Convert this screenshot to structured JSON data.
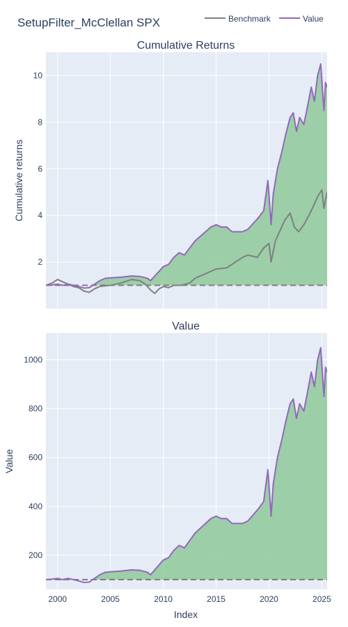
{
  "title": "SetupFilter_McClellan SPX",
  "legend": [
    {
      "name": "Benchmark",
      "color": "#7f7f7f"
    },
    {
      "name": "Value",
      "color": "#9467bd"
    }
  ],
  "colors": {
    "plot_bg": "#e5ecf6",
    "grid": "#ffffff",
    "fill_positive": "#8fc99a",
    "value_line": "#9467bd",
    "benchmark_line": "#7f7f7f",
    "benchmark_line_over": "#5e7f5e",
    "baseline": "#7f7f7f"
  },
  "chart_data": [
    {
      "type": "line",
      "title": "Cumulative Returns",
      "xlabel": "",
      "ylabel": "Cumulative returns",
      "xlim": [
        1998.9,
        2025.5
      ],
      "ylim": [
        0,
        11
      ],
      "yticks": [
        2,
        4,
        6,
        8,
        10
      ],
      "xticks": [
        2000,
        2005,
        2010,
        2015,
        2020,
        2025
      ],
      "grid": true,
      "baseline": 1,
      "series": [
        {
          "name": "Benchmark",
          "x": [
            1998.9,
            1999.5,
            2000.0,
            2000.5,
            2001.0,
            2001.5,
            2002.0,
            2002.5,
            2003.0,
            2003.5,
            2004.0,
            2005.0,
            2006.0,
            2007.0,
            2007.8,
            2008.3,
            2008.8,
            2009.2,
            2009.6,
            2010.0,
            2010.5,
            2011.0,
            2011.7,
            2012.5,
            2013.0,
            2014.0,
            2015.0,
            2016.0,
            2016.5,
            2017.5,
            2018.0,
            2018.9,
            2019.5,
            2020.0,
            2020.2,
            2020.6,
            2021.0,
            2021.5,
            2022.0,
            2022.4,
            2022.8,
            2023.3,
            2024.0,
            2024.6,
            2025.0,
            2025.2,
            2025.5
          ],
          "values": [
            1.0,
            1.1,
            1.25,
            1.15,
            1.05,
            0.95,
            0.9,
            0.75,
            0.7,
            0.85,
            0.95,
            1.0,
            1.1,
            1.25,
            1.2,
            1.05,
            0.8,
            0.65,
            0.85,
            0.95,
            0.9,
            1.0,
            1.0,
            1.1,
            1.3,
            1.5,
            1.7,
            1.75,
            1.9,
            2.2,
            2.3,
            2.2,
            2.6,
            2.8,
            2.0,
            2.9,
            3.3,
            3.8,
            4.1,
            3.5,
            3.3,
            3.6,
            4.2,
            4.8,
            5.1,
            4.3,
            5.0
          ]
        },
        {
          "name": "Value",
          "x": [
            1998.9,
            1999.5,
            2000.0,
            2000.5,
            2001.0,
            2001.5,
            2002.0,
            2002.5,
            2003.0,
            2003.5,
            2004.0,
            2004.5,
            2005.0,
            2006.0,
            2007.0,
            2007.8,
            2008.5,
            2008.8,
            2009.2,
            2009.6,
            2010.0,
            2010.5,
            2011.0,
            2011.5,
            2012.0,
            2012.5,
            2013.0,
            2013.5,
            2014.0,
            2014.5,
            2015.0,
            2015.5,
            2016.0,
            2016.5,
            2017.0,
            2017.5,
            2018.0,
            2018.6,
            2019.0,
            2019.5,
            2019.9,
            2020.2,
            2020.4,
            2020.8,
            2021.2,
            2021.6,
            2022.0,
            2022.3,
            2022.6,
            2022.9,
            2023.3,
            2023.7,
            2024.0,
            2024.3,
            2024.6,
            2024.9,
            2025.0,
            2025.2,
            2025.35,
            2025.5
          ],
          "values": [
            1.0,
            1.02,
            1.05,
            1.0,
            1.05,
            1.0,
            0.95,
            0.88,
            0.9,
            1.05,
            1.2,
            1.3,
            1.32,
            1.35,
            1.4,
            1.38,
            1.3,
            1.2,
            1.4,
            1.6,
            1.8,
            1.9,
            2.2,
            2.4,
            2.3,
            2.6,
            2.9,
            3.1,
            3.3,
            3.5,
            3.6,
            3.5,
            3.5,
            3.3,
            3.3,
            3.3,
            3.4,
            3.7,
            3.9,
            4.2,
            5.5,
            3.6,
            4.9,
            6.0,
            6.7,
            7.5,
            8.2,
            8.4,
            7.6,
            8.2,
            7.9,
            8.8,
            9.5,
            8.9,
            10.0,
            10.5,
            9.8,
            8.5,
            9.7,
            9.5
          ]
        }
      ]
    },
    {
      "type": "line",
      "title": "Value",
      "xlabel": "Index",
      "ylabel": "Value",
      "xlim": [
        1998.9,
        2025.5
      ],
      "ylim": [
        60,
        1110
      ],
      "yticks": [
        200,
        400,
        600,
        800,
        1000
      ],
      "xticks": [
        2000,
        2005,
        2010,
        2015,
        2020,
        2025
      ],
      "grid": true,
      "baseline": 100,
      "series": [
        {
          "name": "Value",
          "x": [
            1998.9,
            1999.5,
            2000.0,
            2000.5,
            2001.0,
            2001.5,
            2002.0,
            2002.5,
            2003.0,
            2003.5,
            2004.0,
            2004.5,
            2005.0,
            2006.0,
            2007.0,
            2007.8,
            2008.5,
            2008.8,
            2009.2,
            2009.6,
            2010.0,
            2010.5,
            2011.0,
            2011.5,
            2012.0,
            2012.5,
            2013.0,
            2013.5,
            2014.0,
            2014.5,
            2015.0,
            2015.5,
            2016.0,
            2016.5,
            2017.0,
            2017.5,
            2018.0,
            2018.6,
            2019.0,
            2019.5,
            2019.9,
            2020.2,
            2020.4,
            2020.8,
            2021.2,
            2021.6,
            2022.0,
            2022.3,
            2022.6,
            2022.9,
            2023.3,
            2023.7,
            2024.0,
            2024.3,
            2024.6,
            2024.9,
            2025.0,
            2025.2,
            2025.35,
            2025.5
          ],
          "values": [
            100,
            102,
            105,
            100,
            105,
            100,
            95,
            88,
            90,
            105,
            120,
            130,
            132,
            135,
            140,
            138,
            130,
            120,
            140,
            160,
            180,
            190,
            220,
            240,
            230,
            260,
            290,
            310,
            330,
            350,
            360,
            350,
            350,
            330,
            330,
            330,
            340,
            370,
            390,
            420,
            550,
            360,
            490,
            600,
            670,
            750,
            820,
            840,
            760,
            820,
            790,
            880,
            950,
            890,
            1000,
            1050,
            980,
            850,
            970,
            950
          ]
        }
      ]
    }
  ]
}
